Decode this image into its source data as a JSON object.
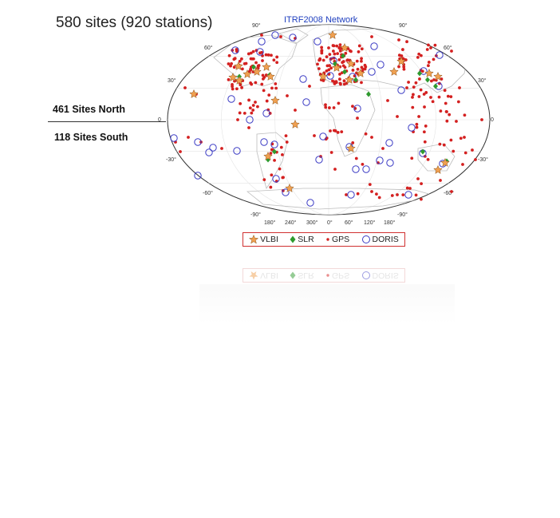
{
  "headline": "580 sites (920 stations)",
  "map_title": "ITRF2008 Network",
  "hemisphere_labels": {
    "north": "461 Sites North",
    "south": "118 Sites South"
  },
  "latitude_labels": [
    "90°",
    "60°",
    "30°",
    "0",
    "-30°",
    "-60°",
    "-90°"
  ],
  "longitude_labels": [
    "180°",
    "240°",
    "300°",
    "0°",
    "60°",
    "120°",
    "180°"
  ],
  "legend": {
    "vlbi": "VLBI",
    "slr": "SLR",
    "gps": "GPS",
    "doris": "DORIS"
  },
  "colors": {
    "vlbi": "#f0a050",
    "slr": "#2e9a2e",
    "gps": "#d42020",
    "doris": "#3b3bc4",
    "title": "#1f3fbf",
    "coast": "#bcbcbc"
  },
  "icons": {
    "vlbi": "star-icon",
    "slr": "diamond-icon",
    "gps": "dot-icon",
    "doris": "ring-icon"
  }
}
